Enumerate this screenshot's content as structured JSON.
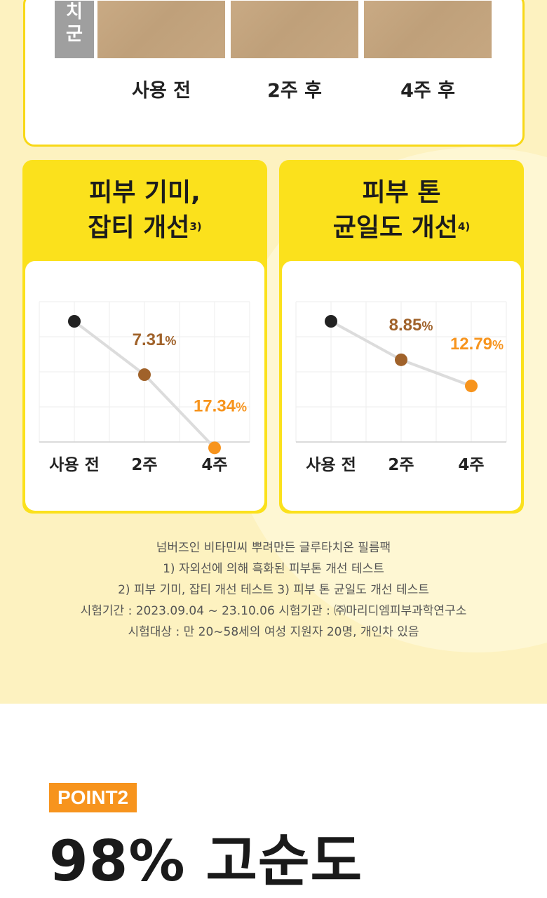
{
  "top_card": {
    "side_label": [
      "치",
      "군"
    ],
    "stages": [
      "사용 전",
      "2주 후",
      "4주 후"
    ]
  },
  "cards": [
    {
      "title_line1": "피부 기미,",
      "title_line2": "잡티 개선",
      "footnote": "3)",
      "chart_data": {
        "type": "line",
        "categories": [
          "사용 전",
          "2주",
          "4주"
        ],
        "values": [
          null,
          7.31,
          17.34
        ],
        "labels": [
          "",
          "7.31%",
          "17.34%"
        ]
      }
    },
    {
      "title_line1": "피부 톤",
      "title_line2": "균일도 개선",
      "footnote": "4)",
      "chart_data": {
        "type": "line",
        "categories": [
          "사용 전",
          "2주",
          "4주"
        ],
        "values": [
          null,
          8.85,
          12.79
        ],
        "labels": [
          "",
          "8.85%",
          "12.79%"
        ]
      }
    }
  ],
  "colors": {
    "point_base": "#222222",
    "point_2w": "#a0622a",
    "point_4w": "#f7941d",
    "line": "#dcdcdc",
    "card_yellow": "#fbe11c"
  },
  "notes": [
    "넘버즈인 비타민씨 뿌려만든 글루타치온 필름팩",
    "1) 자외선에 의해 흑화된 피부톤 개선 테스트",
    "2) 피부 기미, 잡티 개선 테스트  3) 피부 톤 균일도 개선 테스트",
    "시험기간 : 2023.09.04 ~ 23.10.06    시험기관 : ㈜마리디엠피부과학연구소",
    "시험대상 : 만 20~58세의 여성 지원자 20명, 개인차 있음"
  ],
  "point": {
    "badge": "POINT2",
    "title": "98% 고순도"
  }
}
